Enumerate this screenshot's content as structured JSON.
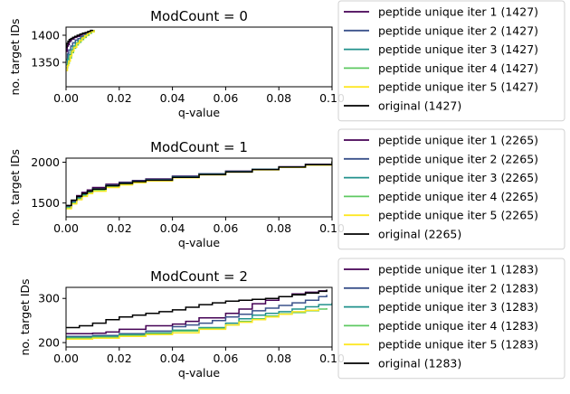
{
  "colors": {
    "iter1": "#440154",
    "iter2": "#3b528b",
    "iter3": "#21918c",
    "iter4": "#5ec962",
    "iter5": "#fde725",
    "original": "#000000"
  },
  "chart_data": [
    {
      "type": "line",
      "title": "ModCount = 0",
      "xlabel": "q-value",
      "ylabel": "no. target IDs",
      "xlim": [
        0,
        0.1
      ],
      "ylim": [
        1305,
        1415
      ],
      "xticks": [
        "0.00",
        "0.02",
        "0.04",
        "0.06",
        "0.08",
        "0.10"
      ],
      "yticks": [
        {
          "v": 1350,
          "label": "1350"
        },
        {
          "v": 1400,
          "label": "1400"
        }
      ],
      "legend": "outside-right",
      "series": [
        {
          "name": "peptide unique iter 1 (1427)",
          "color": "#440154",
          "x": [
            0,
            0.0004,
            0.0008,
            0.0012,
            0.0016,
            0.002,
            0.003,
            0.004,
            0.005,
            0.006,
            0.007,
            0.008,
            0.009,
            0.0095
          ],
          "y": [
            1370,
            1380,
            1383,
            1388,
            1390,
            1393,
            1396,
            1398,
            1400,
            1402,
            1403,
            1405,
            1407,
            1410
          ]
        },
        {
          "name": "peptide unique iter 2 (1427)",
          "color": "#3b528b",
          "x": [
            0,
            0.0005,
            0.001,
            0.0018,
            0.0025,
            0.0035,
            0.0045,
            0.0055,
            0.0065,
            0.0075,
            0.0085,
            0.0095,
            0.0105
          ],
          "y": [
            1355,
            1366,
            1373,
            1380,
            1386,
            1391,
            1394,
            1397,
            1399,
            1402,
            1405,
            1407,
            1410
          ]
        },
        {
          "name": "peptide unique iter 3 (1427)",
          "color": "#21918c",
          "x": [
            0,
            0.0005,
            0.001,
            0.0018,
            0.0026,
            0.0035,
            0.0045,
            0.0055,
            0.0065,
            0.0075,
            0.0085,
            0.0095,
            0.0105
          ],
          "y": [
            1345,
            1356,
            1364,
            1373,
            1380,
            1386,
            1390,
            1394,
            1398,
            1401,
            1404,
            1407,
            1410
          ]
        },
        {
          "name": "peptide unique iter 4 (1427)",
          "color": "#5ec962",
          "x": [
            0,
            0.0006,
            0.0012,
            0.002,
            0.0028,
            0.0036,
            0.0046,
            0.0056,
            0.0066,
            0.0076,
            0.0086,
            0.0096,
            0.0106
          ],
          "y": [
            1340,
            1348,
            1358,
            1368,
            1376,
            1382,
            1387,
            1392,
            1396,
            1400,
            1404,
            1407,
            1410
          ]
        },
        {
          "name": "peptide unique iter 5 (1427)",
          "color": "#fde725",
          "x": [
            0,
            0.0005,
            0.001,
            0.0016,
            0.0022,
            0.003,
            0.004,
            0.005,
            0.006,
            0.007,
            0.008,
            0.009,
            0.0105
          ],
          "y": [
            1335,
            1344,
            1352,
            1362,
            1371,
            1378,
            1385,
            1390,
            1395,
            1399,
            1403,
            1406,
            1410
          ]
        },
        {
          "name": "original (1427)",
          "color": "#000000",
          "x": [
            0,
            0.0003,
            0.0007,
            0.0012,
            0.0018,
            0.0025,
            0.0033,
            0.0042,
            0.0052,
            0.0062,
            0.0072,
            0.0082,
            0.0092,
            0.01
          ],
          "y": [
            1378,
            1385,
            1389,
            1392,
            1394,
            1396,
            1398,
            1400,
            1402,
            1404,
            1405,
            1407,
            1409,
            1410
          ]
        }
      ]
    },
    {
      "type": "line",
      "title": "ModCount = 1",
      "xlabel": "q-value",
      "ylabel": "no. target IDs",
      "xlim": [
        0,
        0.1
      ],
      "ylim": [
        1330,
        2050
      ],
      "xticks": [
        "0.00",
        "0.02",
        "0.04",
        "0.06",
        "0.08",
        "0.10"
      ],
      "yticks": [
        {
          "v": 1500,
          "label": "1500"
        },
        {
          "v": 2000,
          "label": "2000"
        }
      ],
      "legend": "outside-right",
      "series": [
        {
          "name": "peptide unique iter 1 (2265)",
          "color": "#440154",
          "x": [
            0,
            0.002,
            0.004,
            0.006,
            0.008,
            0.01,
            0.015,
            0.02,
            0.025,
            0.03,
            0.04,
            0.05,
            0.06,
            0.07,
            0.08,
            0.09,
            0.1
          ],
          "y": [
            1450,
            1530,
            1590,
            1630,
            1660,
            1690,
            1730,
            1755,
            1775,
            1795,
            1830,
            1860,
            1890,
            1915,
            1945,
            1975,
            2010
          ]
        },
        {
          "name": "peptide unique iter 2 (2265)",
          "color": "#3b528b",
          "x": [
            0,
            0.002,
            0.004,
            0.006,
            0.008,
            0.01,
            0.015,
            0.02,
            0.025,
            0.03,
            0.04,
            0.05,
            0.06,
            0.07,
            0.08,
            0.09,
            0.1
          ],
          "y": [
            1460,
            1520,
            1575,
            1615,
            1645,
            1675,
            1720,
            1750,
            1770,
            1790,
            1825,
            1858,
            1888,
            1914,
            1942,
            1972,
            2008
          ]
        },
        {
          "name": "peptide unique iter 3 (2265)",
          "color": "#21918c",
          "x": [
            0,
            0.002,
            0.004,
            0.006,
            0.008,
            0.01,
            0.015,
            0.02,
            0.025,
            0.03,
            0.04,
            0.05,
            0.06,
            0.07,
            0.08,
            0.09,
            0.1
          ],
          "y": [
            1440,
            1505,
            1560,
            1600,
            1635,
            1665,
            1710,
            1740,
            1762,
            1782,
            1818,
            1852,
            1884,
            1912,
            1940,
            1968,
            2005
          ]
        },
        {
          "name": "peptide unique iter 4 (2265)",
          "color": "#5ec962",
          "x": [
            0,
            0.002,
            0.004,
            0.006,
            0.008,
            0.01,
            0.015,
            0.02,
            0.025,
            0.03,
            0.04,
            0.05,
            0.06,
            0.07,
            0.08,
            0.09,
            0.1
          ],
          "y": [
            1445,
            1500,
            1550,
            1590,
            1625,
            1655,
            1700,
            1732,
            1756,
            1776,
            1812,
            1848,
            1880,
            1908,
            1938,
            1966,
            2004
          ]
        },
        {
          "name": "peptide unique iter 5 (2265)",
          "color": "#fde725",
          "x": [
            0,
            0.002,
            0.004,
            0.006,
            0.008,
            0.01,
            0.015,
            0.02,
            0.025,
            0.03,
            0.04,
            0.05,
            0.06,
            0.07,
            0.08,
            0.09,
            0.1
          ],
          "y": [
            1430,
            1490,
            1540,
            1580,
            1615,
            1645,
            1690,
            1722,
            1748,
            1770,
            1808,
            1845,
            1878,
            1906,
            1936,
            1965,
            2003
          ]
        },
        {
          "name": "original (2265)",
          "color": "#000000",
          "x": [
            0,
            0.002,
            0.004,
            0.006,
            0.008,
            0.01,
            0.015,
            0.02,
            0.025,
            0.03,
            0.04,
            0.05,
            0.06,
            0.07,
            0.08,
            0.09,
            0.1
          ],
          "y": [
            1470,
            1535,
            1580,
            1615,
            1645,
            1670,
            1712,
            1740,
            1762,
            1780,
            1815,
            1850,
            1882,
            1910,
            1940,
            1970,
            2010
          ]
        }
      ]
    },
    {
      "type": "line",
      "title": "ModCount = 2",
      "xlabel": "q-value",
      "ylabel": "no. target IDs",
      "xlim": [
        0,
        0.1
      ],
      "ylim": [
        190,
        325
      ],
      "xticks": [
        "0.00",
        "0.02",
        "0.04",
        "0.06",
        "0.08",
        "0.10"
      ],
      "yticks": [
        {
          "v": 200,
          "label": "200"
        },
        {
          "v": 300,
          "label": "300"
        }
      ],
      "legend": "outside-right",
      "series": [
        {
          "name": "peptide unique iter 1 (1283)",
          "color": "#440154",
          "x": [
            0,
            0.01,
            0.015,
            0.02,
            0.03,
            0.04,
            0.045,
            0.05,
            0.06,
            0.065,
            0.07,
            0.075,
            0.08,
            0.085,
            0.09,
            0.095,
            0.098
          ],
          "y": [
            220,
            221,
            224,
            230,
            238,
            242,
            248,
            256,
            266,
            276,
            288,
            296,
            304,
            310,
            314,
            317,
            316
          ]
        },
        {
          "name": "peptide unique iter 2 (1283)",
          "color": "#3b528b",
          "x": [
            0,
            0.01,
            0.02,
            0.03,
            0.04,
            0.045,
            0.05,
            0.055,
            0.06,
            0.065,
            0.07,
            0.075,
            0.08,
            0.085,
            0.09,
            0.095,
            0.098
          ],
          "y": [
            214,
            216,
            220,
            226,
            236,
            240,
            244,
            250,
            258,
            264,
            272,
            278,
            284,
            290,
            296,
            304,
            308
          ]
        },
        {
          "name": "peptide unique iter 3 (1283)",
          "color": "#21918c",
          "x": [
            0,
            0.01,
            0.02,
            0.03,
            0.04,
            0.05,
            0.06,
            0.065,
            0.07,
            0.075,
            0.08,
            0.085,
            0.09,
            0.095,
            0.1
          ],
          "y": [
            212,
            214,
            218,
            222,
            228,
            234,
            244,
            254,
            262,
            266,
            270,
            276,
            281,
            286,
            290
          ]
        },
        {
          "name": "peptide unique iter 4 (1283)",
          "color": "#5ec962",
          "x": [
            0,
            0.01,
            0.02,
            0.03,
            0.04,
            0.05,
            0.06,
            0.065,
            0.07,
            0.075,
            0.08,
            0.085,
            0.09,
            0.095,
            0.098
          ],
          "y": [
            210,
            212,
            216,
            220,
            226,
            232,
            240,
            248,
            254,
            260,
            265,
            268,
            272,
            276,
            278
          ]
        },
        {
          "name": "peptide unique iter 5 (1283)",
          "color": "#fde725",
          "x": [
            0,
            0.01,
            0.02,
            0.03,
            0.04,
            0.05,
            0.06,
            0.065,
            0.07,
            0.075,
            0.08,
            0.085,
            0.09,
            0.095
          ],
          "y": [
            208,
            210,
            214,
            218,
            222,
            230,
            240,
            246,
            252,
            258,
            264,
            270,
            273,
            276
          ]
        },
        {
          "name": "original (1283)",
          "color": "#000000",
          "x": [
            0,
            0.005,
            0.01,
            0.015,
            0.02,
            0.025,
            0.03,
            0.035,
            0.04,
            0.045,
            0.05,
            0.055,
            0.06,
            0.065,
            0.07,
            0.075,
            0.08,
            0.085,
            0.09,
            0.095,
            0.098
          ],
          "y": [
            234,
            238,
            244,
            252,
            258,
            262,
            266,
            270,
            274,
            280,
            286,
            290,
            294,
            296,
            298,
            300,
            304,
            308,
            312,
            316,
            320
          ]
        }
      ]
    }
  ]
}
